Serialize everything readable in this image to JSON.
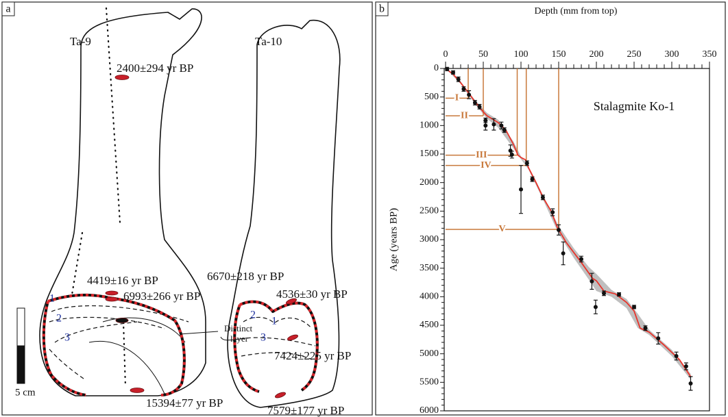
{
  "panel_a": {
    "label": "a",
    "specimens": [
      {
        "name": "Ta-9",
        "dates": [
          "2400±294 yr BP",
          "4419±16 yr BP",
          "6993±266 yr BP",
          "15394±77 yr BP"
        ],
        "layer_numbers": [
          "1",
          "2",
          "3"
        ]
      },
      {
        "name": "Ta-10",
        "dates": [
          "6670±218 yr BP",
          "4536±30 yr BP",
          "7424±225 yr BP",
          "7579±177 yr BP"
        ],
        "layer_numbers": [
          "1",
          "2",
          "3"
        ]
      }
    ],
    "annotation_lines": [
      "Distinct",
      "layer"
    ],
    "scale_bar": "5 cm"
  },
  "chart_data": {
    "type": "scatter",
    "panel_label": "b",
    "title": "Stalagmite Ko-1",
    "x_label": "Depth (mm from top)",
    "y_label": "Age (years BP)",
    "xlim": [
      0,
      350
    ],
    "xticks": [
      0,
      50,
      100,
      150,
      200,
      250,
      300,
      350
    ],
    "ylim": [
      0,
      6000
    ],
    "yticks": [
      0,
      500,
      1000,
      1500,
      2000,
      2500,
      3000,
      3500,
      4000,
      4500,
      5000,
      5500,
      6000
    ],
    "y_inverted": true,
    "x_axis_position": "top",
    "points": {
      "color": "#111111",
      "x": [
        2,
        10,
        17,
        24,
        31,
        39,
        45,
        53,
        53,
        64,
        74,
        78,
        86,
        88,
        108,
        115,
        100,
        129,
        142,
        150,
        156,
        180,
        194,
        199,
        210,
        230,
        250,
        265,
        282,
        306,
        319,
        325
      ],
      "y": [
        10,
        70,
        190,
        360,
        460,
        600,
        670,
        910,
        1000,
        980,
        1000,
        1080,
        1440,
        1510,
        1660,
        1940,
        2120,
        2260,
        2520,
        2830,
        3240,
        3340,
        3730,
        4180,
        3940,
        3960,
        4180,
        4550,
        4730,
        5040,
        5220,
        5520
      ],
      "error": [
        30,
        30,
        40,
        40,
        70,
        40,
        40,
        40,
        80,
        100,
        60,
        40,
        100,
        60,
        40,
        40,
        420,
        40,
        60,
        90,
        200,
        50,
        140,
        120,
        40,
        30,
        30,
        40,
        100,
        70,
        60,
        120
      ]
    },
    "age_model": {
      "color": "#e8332a",
      "x": [
        0,
        10,
        20,
        30,
        40,
        50,
        55,
        60,
        70,
        80,
        90,
        96,
        100,
        106,
        110,
        120,
        130,
        140,
        148,
        160,
        180,
        195,
        200,
        210,
        225,
        240,
        250,
        258,
        270,
        290,
        310,
        325
      ],
      "y": [
        0,
        100,
        250,
        420,
        600,
        760,
        830,
        870,
        950,
        1080,
        1330,
        1520,
        1560,
        1600,
        1740,
        2000,
        2280,
        2500,
        2780,
        3050,
        3400,
        3680,
        3720,
        3900,
        3950,
        4100,
        4250,
        4550,
        4620,
        4850,
        5100,
        5400
      ]
    },
    "uncertainty": {
      "color": "#b4b4b4",
      "x": [
        0,
        20,
        40,
        55,
        70,
        90,
        100,
        110,
        130,
        150,
        170,
        190,
        200,
        220,
        240,
        255,
        270,
        300,
        325
      ],
      "lower": [
        0,
        230,
        570,
        780,
        900,
        1280,
        1540,
        1720,
        2240,
        2760,
        3150,
        3480,
        3600,
        3880,
        4040,
        4300,
        4580,
        4930,
        5350
      ],
      "upper": [
        0,
        270,
        640,
        880,
        1040,
        1400,
        1590,
        1770,
        2320,
        2900,
        3320,
        3700,
        3900,
        4000,
        4200,
        4550,
        4670,
        5040,
        5450
      ]
    },
    "levels": {
      "color": "#c8783a",
      "items": [
        {
          "label": "I",
          "x": 30,
          "y": 520
        },
        {
          "label": "II",
          "x": 50,
          "y": 830
        },
        {
          "label": "III",
          "x": 95,
          "y": 1520
        },
        {
          "label": "IV",
          "x": 107,
          "y": 1700
        },
        {
          "label": "V",
          "x": 150,
          "y": 2820
        }
      ]
    }
  }
}
